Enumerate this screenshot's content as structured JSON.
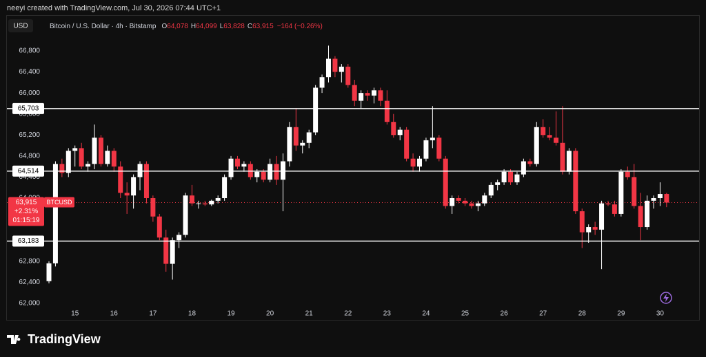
{
  "header": {
    "credit": "neeyi created with TradingView.com, Jul 30, 2026 07:44 UTC+1"
  },
  "footer": {
    "brand": "TradingView"
  },
  "chart_data": {
    "type": "candlestick",
    "currency": "USD",
    "title": "Bitcoin / U.S. Dollar · 4h · Bitstamp",
    "ohlc_legend": [
      {
        "key": "O",
        "value": "64,078"
      },
      {
        "key": "H",
        "value": "64,099"
      },
      {
        "key": "L",
        "value": "63,828"
      },
      {
        "key": "C",
        "value": "63,915"
      }
    ],
    "change": "−164 (−0.26%)",
    "up_color": "#ffffff",
    "down_color": "#f23645",
    "categories": [
      null,
      null,
      null,
      null,
      "15",
      null,
      null,
      null,
      null,
      null,
      "16",
      null,
      null,
      null,
      null,
      null,
      "17",
      null,
      null,
      null,
      null,
      null,
      "18",
      null,
      null,
      null,
      null,
      null,
      "19",
      null,
      null,
      null,
      null,
      null,
      "20",
      null,
      null,
      null,
      null,
      null,
      "21",
      null,
      null,
      null,
      null,
      null,
      "22",
      null,
      null,
      null,
      null,
      null,
      "23",
      null,
      null,
      null,
      null,
      null,
      "24",
      null,
      null,
      null,
      null,
      null,
      "25",
      null,
      null,
      null,
      null,
      null,
      "26",
      null,
      null,
      null,
      null,
      null,
      "27",
      null,
      null,
      null,
      null,
      null,
      "28",
      null,
      null,
      null,
      null,
      null,
      "29",
      null,
      null,
      null,
      null,
      null,
      "30",
      null
    ],
    "open": [
      62420,
      62760,
      64650,
      64480,
      64900,
      64950,
      64600,
      64650,
      65150,
      64650,
      64900,
      64600,
      64100,
      64050,
      64400,
      64650,
      64000,
      63650,
      63250,
      62750,
      63200,
      63300,
      64050,
      63900,
      63900,
      63880,
      63950,
      64000,
      64400,
      64750,
      64600,
      64650,
      64400,
      64500,
      64350,
      64650,
      64350,
      64700,
      65350,
      65000,
      65050,
      65250,
      66100,
      66300,
      66650,
      66400,
      66500,
      66150,
      65850,
      66000,
      65950,
      66050,
      65850,
      65450,
      65200,
      65300,
      64750,
      64600,
      64750,
      65100,
      65150,
      64750,
      63850,
      64000,
      63950,
      63900,
      63850,
      63900,
      64050,
      64250,
      64300,
      64500,
      64300,
      64450,
      64700,
      64650,
      65350,
      65200,
      65150,
      65050,
      64500,
      64900,
      63750,
      63350,
      63450,
      63400,
      63900,
      63880,
      63700,
      64500,
      64400,
      63850,
      63450,
      63950,
      64000,
      64078
    ],
    "high": [
      62800,
      64700,
      64750,
      64950,
      65000,
      65050,
      64700,
      65400,
      65200,
      65000,
      64950,
      64700,
      64300,
      64450,
      64700,
      64700,
      64050,
      63700,
      63400,
      63250,
      63350,
      64100,
      64250,
      63950,
      63950,
      63970,
      64050,
      64450,
      64800,
      64800,
      64700,
      64700,
      64550,
      64550,
      64750,
      64800,
      64850,
      65450,
      65700,
      65100,
      65300,
      66150,
      66350,
      66900,
      66700,
      66550,
      66550,
      66250,
      66050,
      66050,
      66100,
      66100,
      66050,
      65600,
      65350,
      65350,
      64850,
      64800,
      65150,
      65750,
      65200,
      64800,
      64050,
      64050,
      64000,
      63950,
      63950,
      64100,
      64300,
      64350,
      64550,
      64550,
      64500,
      64750,
      64750,
      65450,
      65500,
      65350,
      65650,
      65750,
      64950,
      64950,
      63800,
      63500,
      63550,
      63950,
      63950,
      63950,
      64550,
      64600,
      64650,
      64100,
      64050,
      64050,
      64300,
      64099
    ],
    "low": [
      62380,
      62700,
      64400,
      64400,
      64600,
      64550,
      64500,
      64550,
      64600,
      64600,
      64500,
      64000,
      63700,
      63800,
      64150,
      63900,
      63550,
      63200,
      62600,
      62450,
      63050,
      63250,
      63850,
      63800,
      63850,
      63850,
      63900,
      63950,
      64350,
      64550,
      64500,
      64350,
      64300,
      64300,
      64300,
      64250,
      63750,
      64600,
      64900,
      64850,
      64950,
      65200,
      66000,
      66200,
      66300,
      66200,
      66100,
      65750,
      65700,
      65850,
      65800,
      65750,
      65400,
      65150,
      65100,
      64700,
      64500,
      64500,
      64700,
      64950,
      64700,
      63800,
      63700,
      63900,
      63850,
      63800,
      63750,
      63850,
      64000,
      64150,
      64250,
      64250,
      64250,
      64400,
      64600,
      64600,
      65150,
      65100,
      65000,
      64450,
      64450,
      63700,
      63050,
      63150,
      63300,
      62650,
      63850,
      63650,
      63650,
      64350,
      63800,
      63200,
      63400,
      63800,
      63850,
      63828
    ],
    "close": [
      62760,
      64650,
      64480,
      64900,
      64950,
      64600,
      64650,
      65150,
      64650,
      64900,
      64600,
      64100,
      64050,
      64400,
      64650,
      64000,
      63650,
      63250,
      62750,
      63200,
      63300,
      64050,
      63900,
      63900,
      63880,
      63950,
      64000,
      64400,
      64750,
      64600,
      64650,
      64400,
      64500,
      64350,
      64650,
      64350,
      64700,
      65350,
      65000,
      65050,
      65250,
      66100,
      66300,
      66650,
      66400,
      66500,
      66150,
      65850,
      66000,
      65950,
      66050,
      65850,
      65450,
      65200,
      65300,
      64750,
      64600,
      64750,
      65100,
      65150,
      64750,
      63850,
      64000,
      63950,
      63900,
      63850,
      63900,
      64050,
      64250,
      64300,
      64500,
      64300,
      64450,
      64700,
      64650,
      65350,
      65200,
      65150,
      65050,
      64500,
      64900,
      63750,
      63350,
      63450,
      63400,
      63900,
      63880,
      63700,
      64500,
      64400,
      63850,
      63450,
      63950,
      64000,
      64078,
      63915
    ],
    "ylim": [
      61920,
      67480
    ],
    "yticks": [
      {
        "value": 62000,
        "label": "62,000"
      },
      {
        "value": 62400,
        "label": "62,400"
      },
      {
        "value": 62800,
        "label": "62,800"
      },
      {
        "value": 63200,
        "label": "63,200"
      },
      {
        "value": 63600,
        "label": "63,600"
      },
      {
        "value": 64000,
        "label": "64,000"
      },
      {
        "value": 64400,
        "label": "64,400"
      },
      {
        "value": 64800,
        "label": "64,800"
      },
      {
        "value": 65200,
        "label": "65,200"
      },
      {
        "value": 65600,
        "label": "65,600"
      },
      {
        "value": 66000,
        "label": "66,000"
      },
      {
        "value": 66400,
        "label": "66,400"
      },
      {
        "value": 66800,
        "label": "66,800"
      }
    ],
    "grid": false,
    "hlines": [
      {
        "value": 65703,
        "label": "65,703"
      },
      {
        "value": 64514,
        "label": "64,514"
      },
      {
        "value": 63183,
        "label": "63,183"
      }
    ],
    "hline_color": "#ffffff",
    "last_price": {
      "value": 63915,
      "label": "63,915"
    },
    "last_change": "+2.31%",
    "countdown": "01:15:19",
    "symbol": "BTCUSD"
  }
}
